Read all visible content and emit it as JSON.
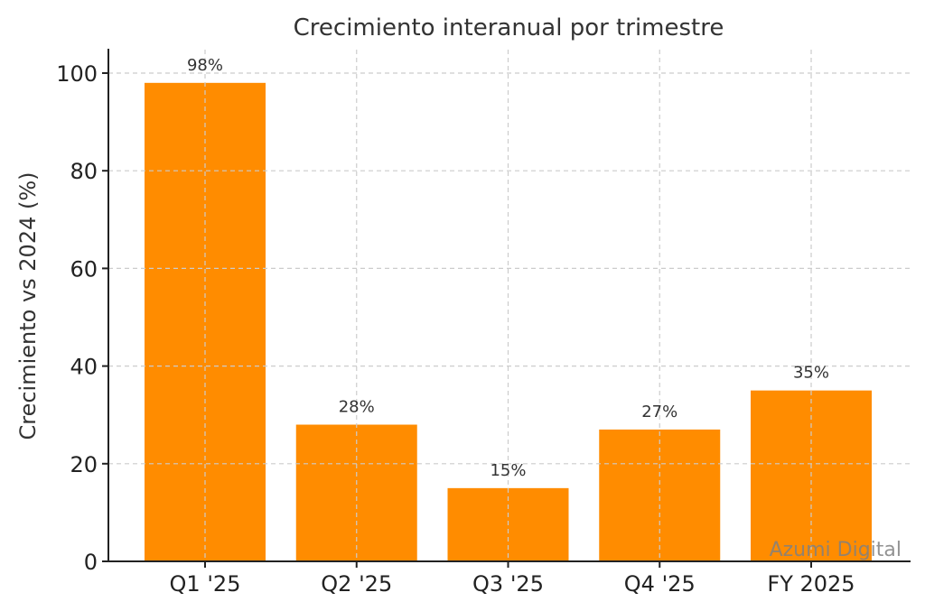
{
  "chart_data": {
    "type": "bar",
    "title": "Crecimiento interanual por trimestre",
    "xlabel": "",
    "ylabel": "Crecimiento vs 2024 (%)",
    "categories": [
      "Q1 '25",
      "Q2 '25",
      "Q3 '25",
      "Q4 '25",
      "FY 2025"
    ],
    "values": [
      98,
      28,
      15,
      27,
      35
    ],
    "data_labels": [
      "98%",
      "28%",
      "15%",
      "27%",
      "35%"
    ],
    "ylim": [
      0,
      105
    ],
    "yticks": [
      0,
      20,
      40,
      60,
      80,
      100
    ],
    "grid": true,
    "legend": null,
    "bar_color": "#FF8C00",
    "watermark": "Azumi Digital"
  }
}
